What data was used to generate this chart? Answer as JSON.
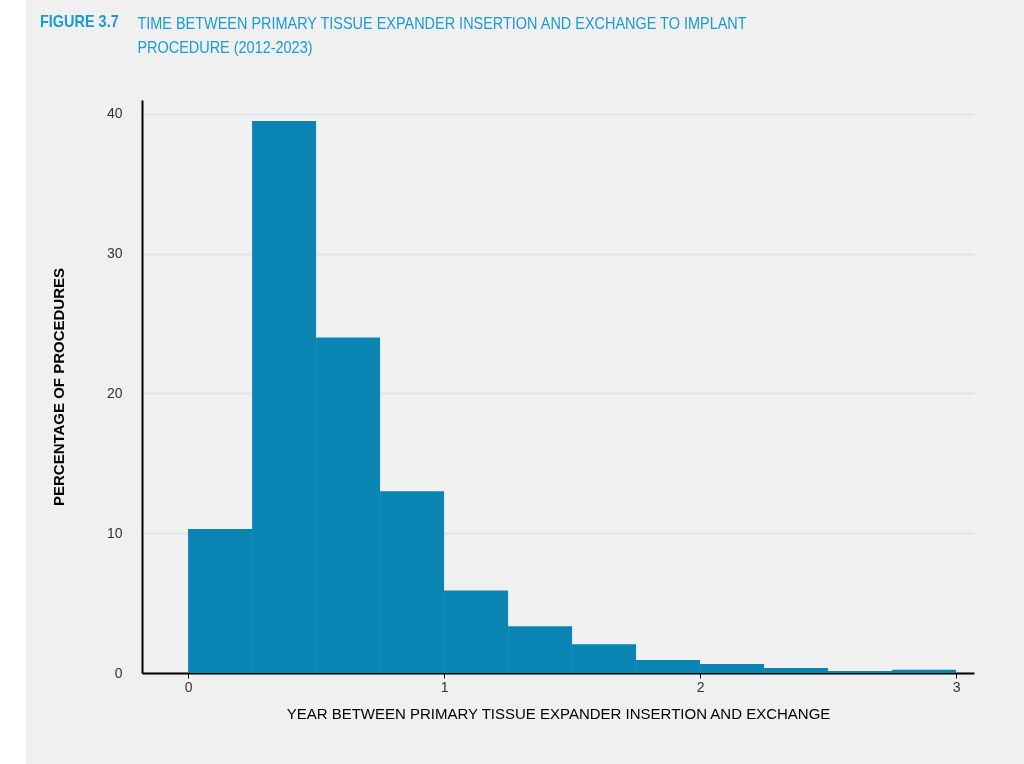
{
  "chart_data": {
    "type": "histogram",
    "title": "FIGURE 3.7",
    "subtitle": "TIME BETWEEN PRIMARY TISSUE EXPANDER INSERTION AND EXCHANGE TO IMPLANT PROCEDURE (2012-2023)",
    "xlabel": "YEAR BETWEEN PRIMARY TISSUE EXPANDER INSERTION AND EXCHANGE",
    "ylabel": "PERCENTAGE OF PROCEDURES",
    "bins": [
      0,
      0.25,
      0.5,
      0.75,
      1,
      1.25,
      1.5,
      1.75,
      2,
      2.25,
      2.5,
      2.75,
      3
    ],
    "values": [
      10.3,
      39.5,
      24.0,
      13.0,
      5.9,
      3.35,
      2.05,
      0.93,
      0.65,
      0.35,
      0.15,
      0.23
    ],
    "color": "#0a85b3",
    "xlim": [
      -0.18,
      3.07
    ],
    "xticks": [
      0,
      1,
      2,
      3
    ],
    "ylim": [
      0,
      41
    ],
    "yticks": [
      0,
      10,
      20,
      30,
      40
    ],
    "grid": "y"
  }
}
